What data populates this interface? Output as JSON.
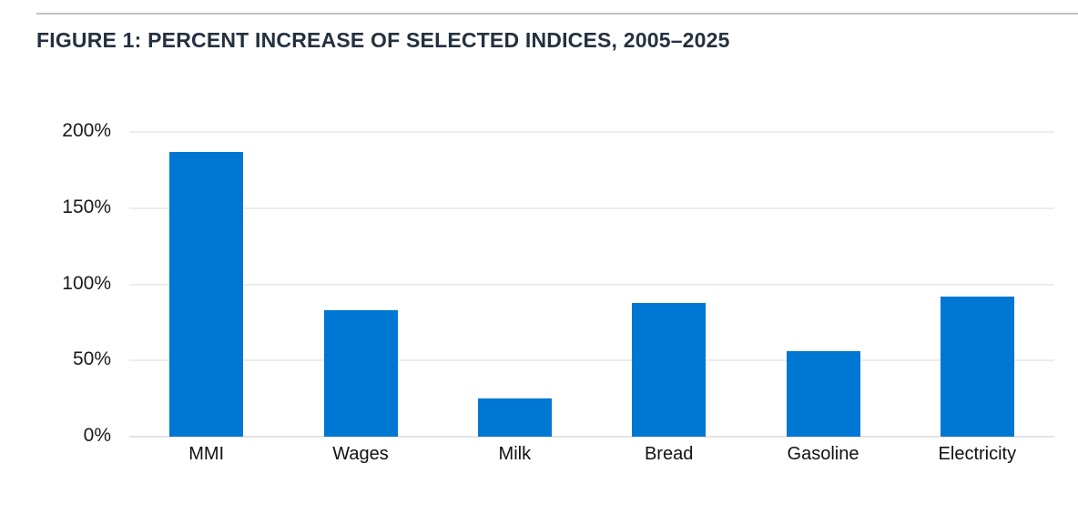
{
  "figure": {
    "title": "FIGURE 1: PERCENT INCREASE OF SELECTED INDICES, 2005–2025"
  },
  "chart_data": {
    "type": "bar",
    "title": "FIGURE 1: PERCENT INCREASE OF SELECTED INDICES, 2005–2025",
    "categories": [
      "MMI",
      "Wages",
      "Milk",
      "Bread",
      "Gasoline",
      "Electricity"
    ],
    "values": [
      187,
      83,
      25,
      88,
      56,
      92
    ],
    "unit": "%",
    "xlabel": "",
    "ylabel": "",
    "ylim": [
      0,
      200
    ],
    "yticks": [
      {
        "value": 0,
        "label": "0%"
      },
      {
        "value": 50,
        "label": "50%"
      },
      {
        "value": 100,
        "label": "100%"
      },
      {
        "value": 150,
        "label": "150%"
      },
      {
        "value": 200,
        "label": "200%"
      }
    ],
    "grid": "horizontal",
    "legend_position": "none",
    "bar_color": "#0077D2"
  },
  "colors": {
    "bar": "#0077D2",
    "title_text": "#24313F",
    "axis_text": "#1A1A1A",
    "gridline": "#EDEDED",
    "top_rule": "#C3C3C3",
    "background": "#FFFFFF"
  }
}
